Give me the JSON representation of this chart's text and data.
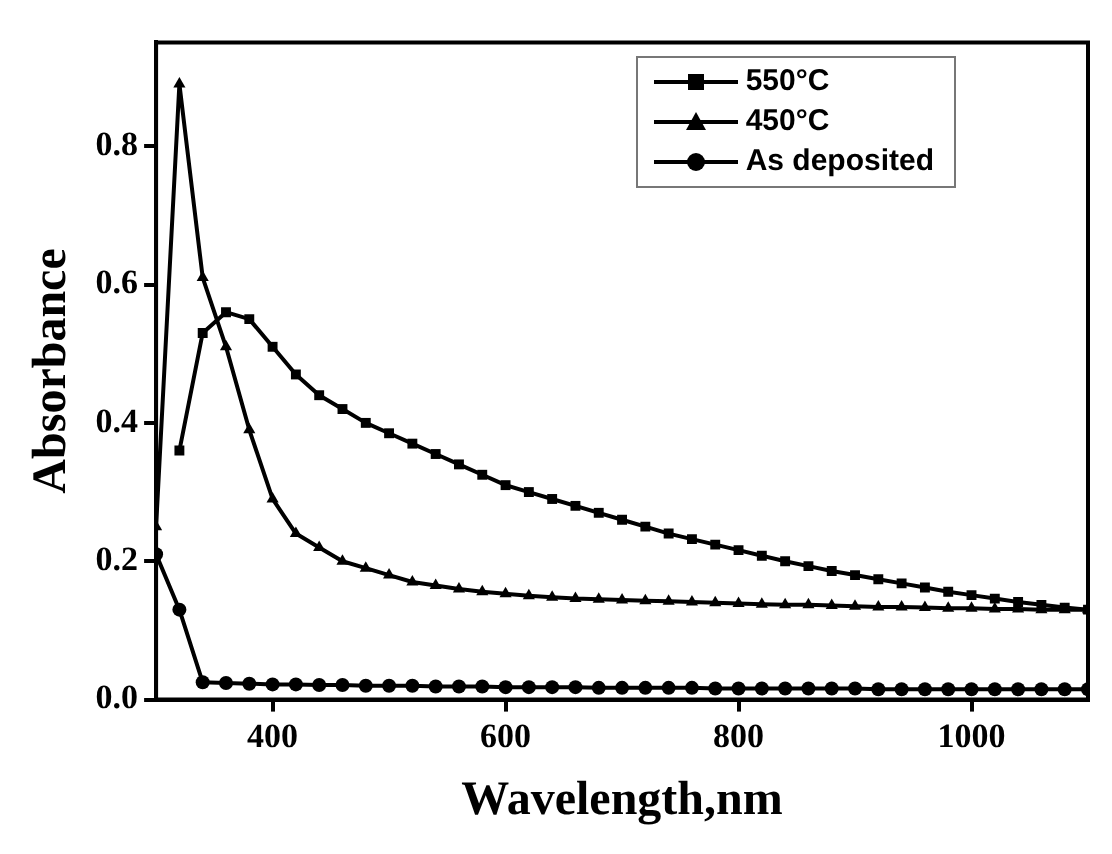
{
  "chart_data": {
    "type": "line",
    "xlabel": "Wavelength,nm",
    "ylabel": "Absorbance",
    "x": [
      300,
      320,
      340,
      360,
      380,
      400,
      420,
      440,
      460,
      480,
      500,
      520,
      540,
      560,
      580,
      600,
      620,
      640,
      660,
      680,
      700,
      720,
      740,
      760,
      780,
      800,
      820,
      840,
      860,
      880,
      900,
      920,
      940,
      960,
      980,
      1000,
      1020,
      1040,
      1060,
      1080,
      1100
    ],
    "series": [
      {
        "name": "550°C",
        "color": "#000000",
        "marker": "square",
        "values": [
          null,
          0.36,
          0.53,
          0.56,
          0.55,
          0.51,
          0.47,
          0.44,
          0.42,
          0.4,
          0.385,
          0.37,
          0.355,
          0.34,
          0.325,
          0.31,
          0.3,
          0.29,
          0.28,
          0.27,
          0.26,
          0.25,
          0.24,
          0.232,
          0.224,
          0.216,
          0.208,
          0.2,
          0.193,
          0.186,
          0.18,
          0.174,
          0.168,
          0.162,
          0.156,
          0.151,
          0.146,
          0.141,
          0.137,
          0.133,
          0.13
        ]
      },
      {
        "name": "450°C",
        "color": "#000000",
        "marker": "triangle",
        "values": [
          0.25,
          0.89,
          0.61,
          0.51,
          0.39,
          0.29,
          0.24,
          0.22,
          0.2,
          0.19,
          0.18,
          0.17,
          0.165,
          0.16,
          0.156,
          0.153,
          0.15,
          0.148,
          0.146,
          0.145,
          0.144,
          0.143,
          0.142,
          0.141,
          0.14,
          0.139,
          0.138,
          0.137,
          0.137,
          0.136,
          0.135,
          0.134,
          0.134,
          0.133,
          0.132,
          0.132,
          0.131,
          0.131,
          0.13,
          0.13,
          0.13
        ]
      },
      {
        "name": "As deposited",
        "color": "#000000",
        "marker": "circle",
        "values": [
          0.21,
          0.13,
          0.025,
          0.024,
          0.023,
          0.022,
          0.022,
          0.021,
          0.021,
          0.02,
          0.02,
          0.02,
          0.019,
          0.019,
          0.019,
          0.018,
          0.018,
          0.018,
          0.018,
          0.017,
          0.017,
          0.017,
          0.017,
          0.017,
          0.016,
          0.016,
          0.016,
          0.016,
          0.016,
          0.016,
          0.016,
          0.015,
          0.015,
          0.015,
          0.015,
          0.015,
          0.015,
          0.015,
          0.015,
          0.015,
          0.015
        ]
      }
    ],
    "xlim": [
      300,
      1100
    ],
    "xticks": [
      400,
      600,
      800,
      1000
    ],
    "ylim": [
      0,
      0.95
    ],
    "yticks": [
      "0.0",
      0.2,
      0.4,
      0.6,
      0.8
    ],
    "legend": "top right",
    "grid": false
  }
}
